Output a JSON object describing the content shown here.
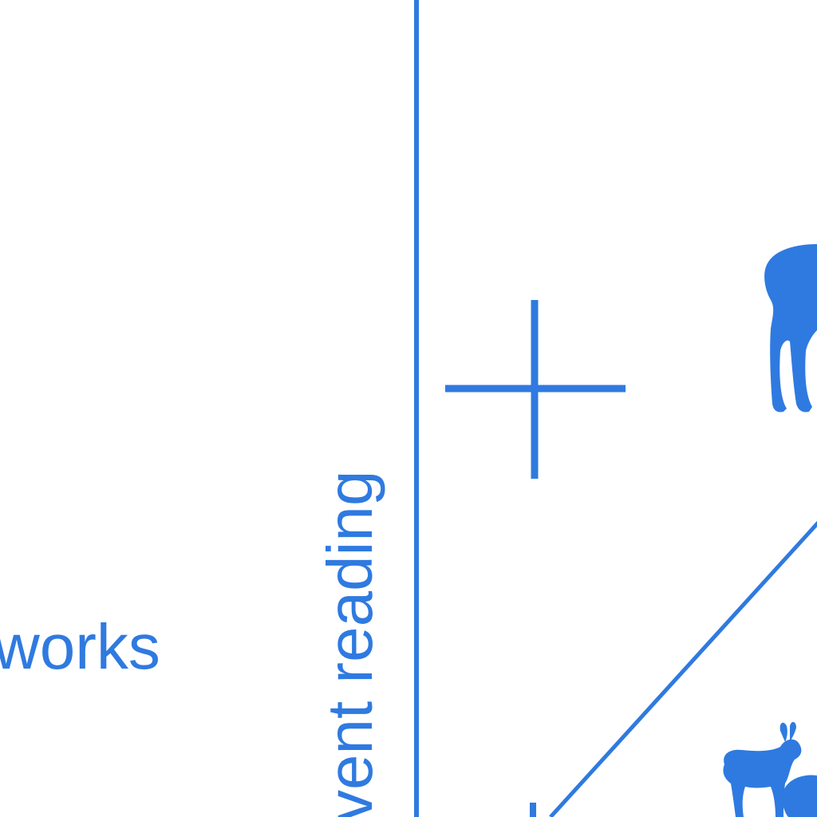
{
  "colors": {
    "accent": "#2f7ae0",
    "background": "#ffffff"
  },
  "labels": {
    "left_text": "works",
    "axis_text": "vent reading"
  },
  "icons": {
    "plus": "plus-icon",
    "large_animal": "deer-silhouette-icon",
    "small_animal": "antelope-silhouette-icon",
    "small_animal_2": "animal-silhouette-icon"
  }
}
